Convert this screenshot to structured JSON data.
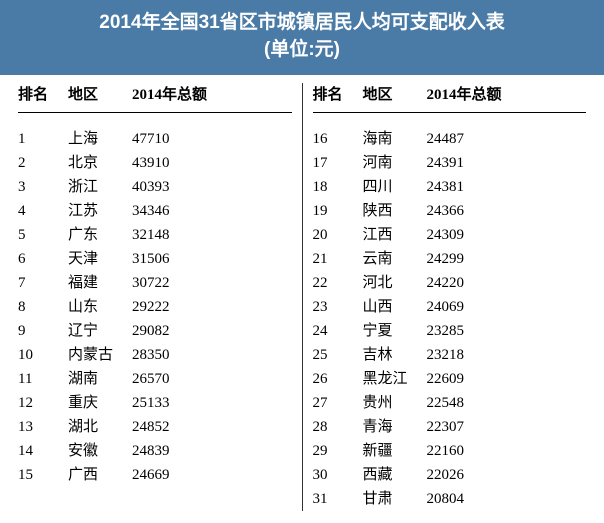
{
  "colors": {
    "header_bg": "#4a7ba6",
    "header_text": "#ffffff",
    "body_bg": "#ffffff",
    "text": "#000000",
    "rule": "#000000",
    "divider": "#333333"
  },
  "typography": {
    "header_fontsize_pt": 14,
    "body_fontsize_pt": 11,
    "header_weight": "bold",
    "col_header_weight": "bold"
  },
  "header": {
    "title": "2014年全国31省区市城镇居民人均可支配收入表",
    "unit": "(单位:元)"
  },
  "columns": {
    "rank": "排名",
    "region": "地区",
    "value": "2014年总额"
  },
  "left": [
    {
      "rank": "1",
      "region": "上海",
      "value": "47710"
    },
    {
      "rank": "2",
      "region": "北京",
      "value": "43910"
    },
    {
      "rank": "3",
      "region": "浙江",
      "value": "40393"
    },
    {
      "rank": "4",
      "region": "江苏",
      "value": "34346"
    },
    {
      "rank": "5",
      "region": "广东",
      "value": "32148"
    },
    {
      "rank": "6",
      "region": "天津",
      "value": "31506"
    },
    {
      "rank": "7",
      "region": "福建",
      "value": "30722"
    },
    {
      "rank": "8",
      "region": "山东",
      "value": "29222"
    },
    {
      "rank": "9",
      "region": "辽宁",
      "value": "29082"
    },
    {
      "rank": "10",
      "region": "内蒙古",
      "value": "28350"
    },
    {
      "rank": "11",
      "region": "湖南",
      "value": "26570"
    },
    {
      "rank": "12",
      "region": "重庆",
      "value": "25133"
    },
    {
      "rank": "13",
      "region": "湖北",
      "value": "24852"
    },
    {
      "rank": "14",
      "region": "安徽",
      "value": "24839"
    },
    {
      "rank": "15",
      "region": "广西",
      "value": "24669"
    }
  ],
  "right": [
    {
      "rank": "16",
      "region": "海南",
      "value": "24487"
    },
    {
      "rank": "17",
      "region": "河南",
      "value": "24391"
    },
    {
      "rank": "18",
      "region": "四川",
      "value": "24381"
    },
    {
      "rank": "19",
      "region": "陕西",
      "value": "24366"
    },
    {
      "rank": "20",
      "region": "江西",
      "value": "24309"
    },
    {
      "rank": "21",
      "region": "云南",
      "value": "24299"
    },
    {
      "rank": "22",
      "region": "河北",
      "value": "24220"
    },
    {
      "rank": "23",
      "region": "山西",
      "value": "24069"
    },
    {
      "rank": "24",
      "region": "宁夏",
      "value": "23285"
    },
    {
      "rank": "25",
      "region": "吉林",
      "value": "23218"
    },
    {
      "rank": "26",
      "region": "黑龙江",
      "value": "22609"
    },
    {
      "rank": "27",
      "region": "贵州",
      "value": "22548"
    },
    {
      "rank": "28",
      "region": "青海",
      "value": "22307"
    },
    {
      "rank": "29",
      "region": "新疆",
      "value": "22160"
    },
    {
      "rank": "30",
      "region": "西藏",
      "value": "22026"
    },
    {
      "rank": "31",
      "region": "甘肃",
      "value": "20804"
    }
  ]
}
